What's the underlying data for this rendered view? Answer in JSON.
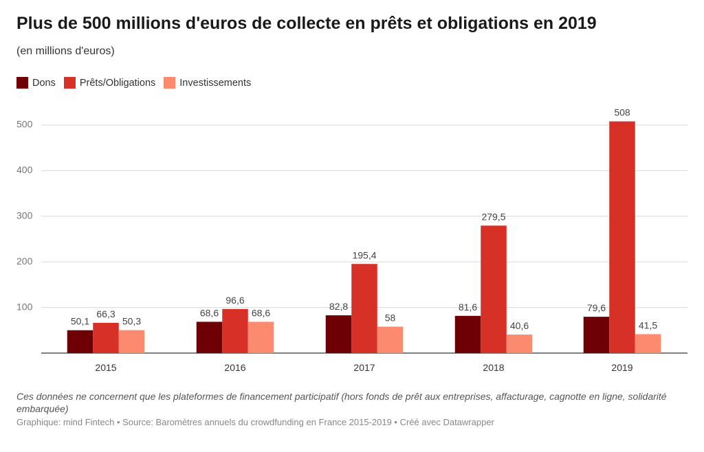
{
  "title": "Plus de 500 millions d'euros de collecte en prêts et obligations en 2019",
  "subtitle": "(en millions d'euros)",
  "note": "Ces données ne concernent que les plateformes de financement participatif (hors fonds de prêt aux entreprises, affacturage, cagnotte en ligne, solidarité embarquée)",
  "footer": "Graphique: mind Fintech • Source: Baromètres annuels du crowdfunding en France 2015-2019 • Créé avec Datawrapper",
  "chart_data": {
    "type": "bar",
    "categories": [
      "2015",
      "2016",
      "2017",
      "2018",
      "2019"
    ],
    "series": [
      {
        "name": "Dons",
        "color": "#6e0005",
        "values": [
          50.1,
          68.6,
          82.8,
          81.6,
          79.6
        ],
        "labels": [
          "50,1",
          "68,6",
          "82,8",
          "81,6",
          "79,6"
        ]
      },
      {
        "name": "Prêts/Obligations",
        "color": "#d73027",
        "values": [
          66.3,
          96.6,
          195.4,
          279.5,
          508
        ],
        "labels": [
          "66,3",
          "96,6",
          "195,4",
          "279,5",
          "508"
        ]
      },
      {
        "name": "Investissements",
        "color": "#fc8a6f",
        "values": [
          50.3,
          68.6,
          58,
          40.6,
          41.5
        ],
        "labels": [
          "50,3",
          "68,6",
          "58",
          "40,6",
          "41,5"
        ]
      }
    ],
    "yticks": [
      100,
      200,
      300,
      400,
      500
    ],
    "ylim": [
      0,
      520
    ],
    "grid": true,
    "legend": "top-left"
  }
}
